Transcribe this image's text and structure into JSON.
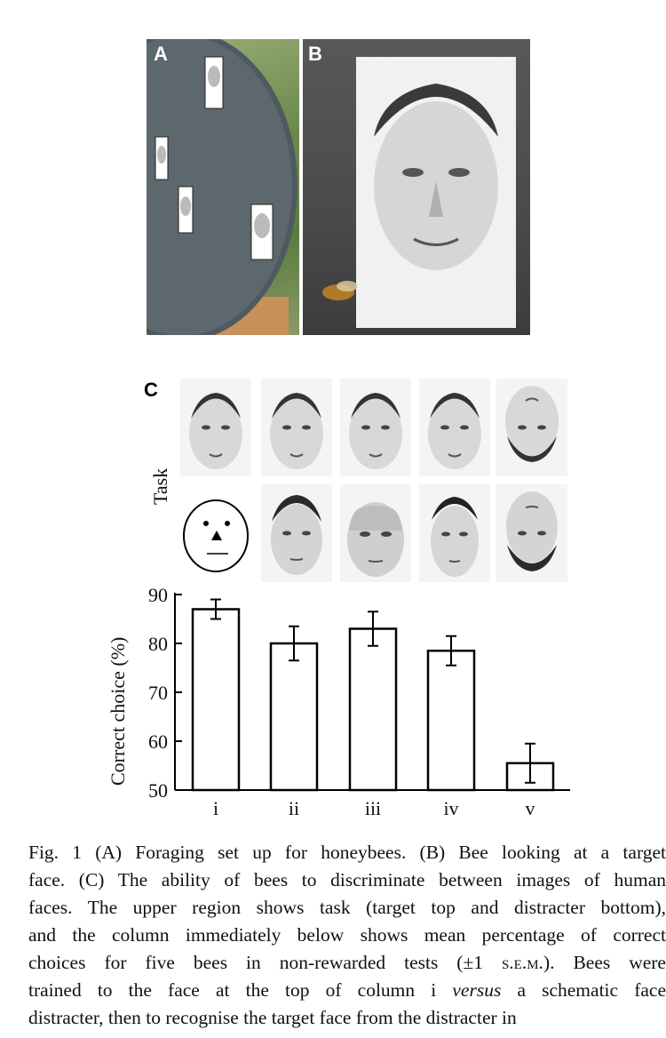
{
  "panels": {
    "a_letter": "A",
    "b_letter": "B",
    "c_letter": "C"
  },
  "task_label": "Task",
  "chart_data": {
    "type": "bar",
    "categories": [
      "i",
      "ii",
      "iii",
      "iv",
      "v"
    ],
    "values": [
      87,
      80,
      83,
      78.5,
      55.5
    ],
    "errors": [
      2,
      3.5,
      3.5,
      3,
      4
    ],
    "ylabel": "Correct choice (%)",
    "ylim": [
      50,
      90
    ],
    "yticks": [
      50,
      60,
      70,
      80,
      90
    ],
    "grid": false
  },
  "caption": {
    "line1": "Fig. 1 (A) Foraging set up for honeybees. (B) Bee looking at a target",
    "line2": "face. (C) The ability of bees to discriminate between images of human",
    "line3": "faces. The upper region shows task (target top and distracter bottom),",
    "line4": "and the column immediately below shows mean percentage of correct",
    "line5_pre": "choices for five bees in non-rewarded tests (±1 ",
    "line5_sem": "s.e.m.",
    "line5_post": "). Bees were",
    "line6_pre": "trained to the face at the top of column i ",
    "line6_em": "versus",
    "line6_post": " a schematic face",
    "line7": "distracter, then to recognise the target face from the distracter in"
  }
}
